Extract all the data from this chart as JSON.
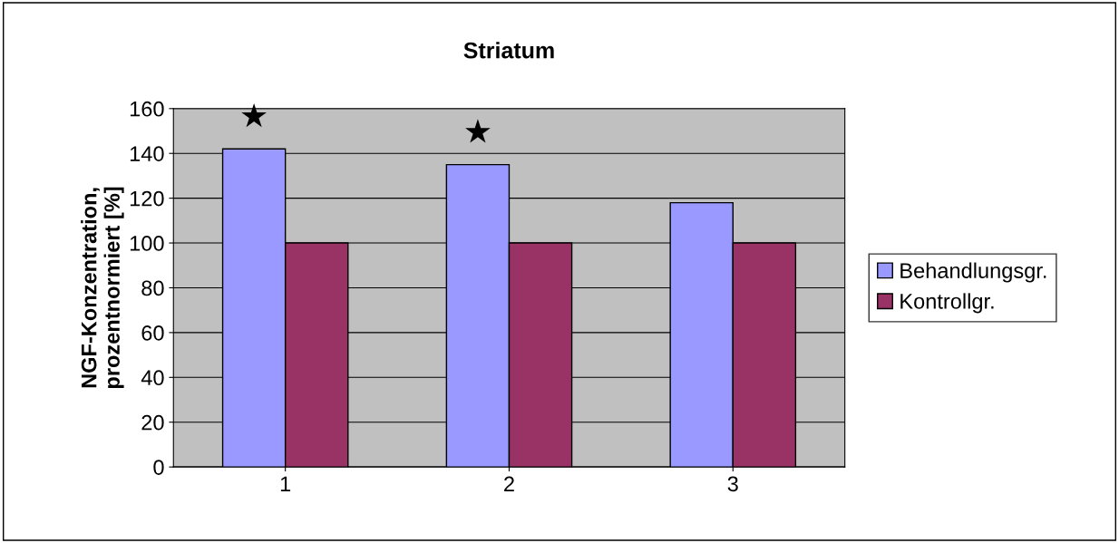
{
  "chart_data": {
    "type": "bar",
    "title": "Striatum",
    "ylabel": "NGF-Konzentration,\nprozentnormiert [%]",
    "categories": [
      "1",
      "2",
      "3"
    ],
    "series": [
      {
        "name": "Behandlungsgr.",
        "color": "#9999ff",
        "values": [
          142,
          135,
          118
        ]
      },
      {
        "name": "Kontrollgr.",
        "color": "#993366",
        "values": [
          100,
          100,
          100
        ]
      }
    ],
    "ylim": [
      0,
      160
    ],
    "yticks": [
      0,
      20,
      40,
      60,
      80,
      100,
      120,
      140,
      160
    ],
    "grid": "y",
    "legend": "right",
    "annotations": [
      {
        "text": "★",
        "x": "1",
        "y": 142
      },
      {
        "text": "★",
        "x": "2",
        "y": 135
      }
    ]
  }
}
